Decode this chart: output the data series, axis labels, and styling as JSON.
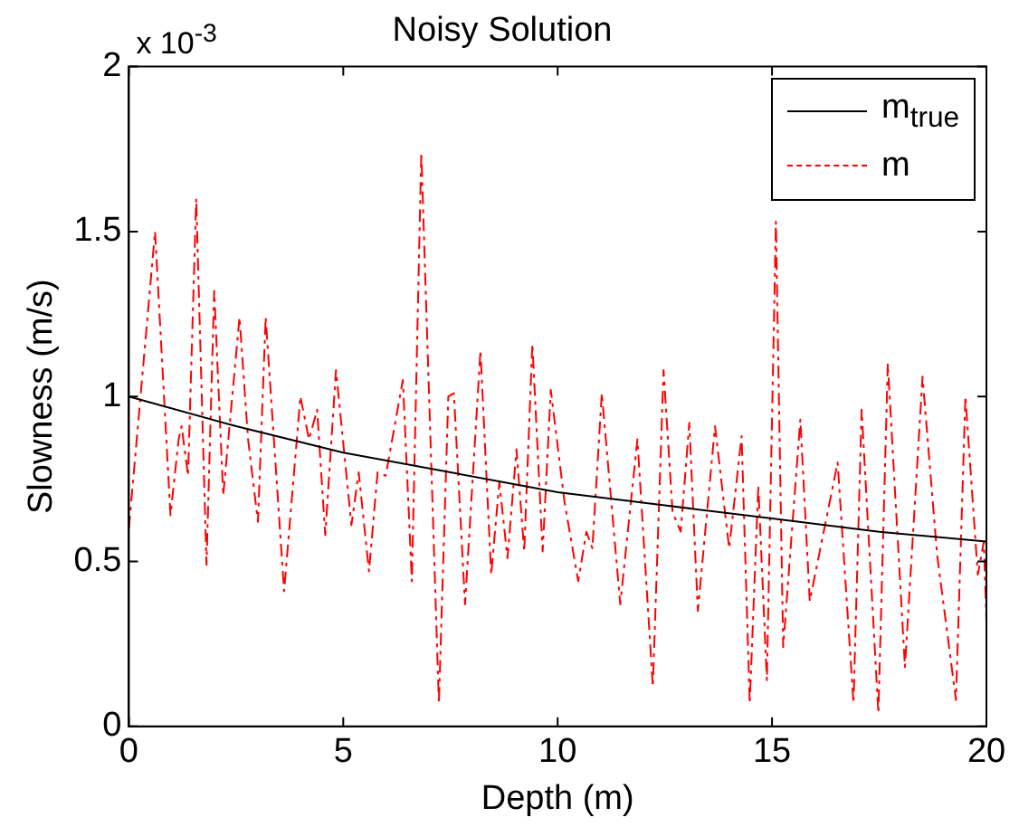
{
  "chart_data": {
    "type": "line",
    "title": "Noisy Solution",
    "xlabel": "Depth (m)",
    "ylabel": "Slowness (m/s)",
    "annotations": [
      "x 10$^{-3}$"
    ],
    "xlim": [
      0,
      20
    ],
    "xticks": [
      0,
      5,
      10,
      15,
      20
    ],
    "ylim": [
      0,
      2
    ],
    "yticks": [
      0,
      0.5,
      1,
      1.5,
      2
    ],
    "grid": false,
    "legend": "top right",
    "marker": "none",
    "series": [
      {
        "name": "m$_{true}$",
        "color": "#000000",
        "line_style": "solid",
        "x": [
          0,
          2.5,
          5,
          7.5,
          10,
          12.5,
          15,
          17.5,
          20
        ],
        "values": [
          1.0,
          0.91,
          0.83,
          0.77,
          0.71,
          0.67,
          0.63,
          0.59,
          0.56
        ]
      },
      {
        "name": "m",
        "color": "#ff0000",
        "line_style": "dashed",
        "x": [
          0,
          0.61,
          0.97,
          1.16,
          1.23,
          1.38,
          1.57,
          1.81,
          1.99,
          2.2,
          2.58,
          2.78,
          3.01,
          3.19,
          3.62,
          4.0,
          4.2,
          4.39,
          4.58,
          4.83,
          5.19,
          5.36,
          5.6,
          5.8,
          5.99,
          6.39,
          6.6,
          6.82,
          7.23,
          7.45,
          7.58,
          7.84,
          8.2,
          8.45,
          8.64,
          8.83,
          9.04,
          9.22,
          9.41,
          9.65,
          9.84,
          10.16,
          10.48,
          10.67,
          10.81,
          11.03,
          11.46,
          11.86,
          12.22,
          12.47,
          12.68,
          12.87,
          13.07,
          13.27,
          13.67,
          14.0,
          14.29,
          14.48,
          14.68,
          14.88,
          15.09,
          15.26,
          15.66,
          15.88,
          16.53,
          16.9,
          17.09,
          17.48,
          17.7,
          18.1,
          18.51,
          18.85,
          19.29,
          19.51,
          19.8,
          19.94,
          20
        ],
        "values": [
          0.6,
          1.5,
          0.64,
          0.87,
          0.91,
          0.76,
          1.6,
          0.49,
          1.32,
          0.7,
          1.24,
          0.87,
          0.62,
          1.24,
          0.41,
          1.0,
          0.87,
          0.96,
          0.58,
          1.08,
          0.61,
          0.77,
          0.47,
          0.77,
          0.76,
          1.05,
          0.44,
          1.74,
          0.07,
          1.0,
          1.01,
          0.37,
          1.14,
          0.46,
          0.74,
          0.51,
          0.84,
          0.53,
          1.16,
          0.53,
          1.02,
          0.68,
          0.44,
          0.59,
          0.54,
          1.01,
          0.37,
          0.87,
          0.12,
          1.08,
          0.65,
          0.59,
          0.92,
          0.35,
          0.91,
          0.54,
          0.88,
          0.07,
          0.73,
          0.14,
          1.53,
          0.24,
          0.93,
          0.38,
          0.8,
          0.07,
          0.96,
          0.04,
          1.1,
          0.18,
          1.06,
          0.52,
          0.08,
          1.0,
          0.46,
          0.56,
          0.32
        ]
      }
    ]
  }
}
